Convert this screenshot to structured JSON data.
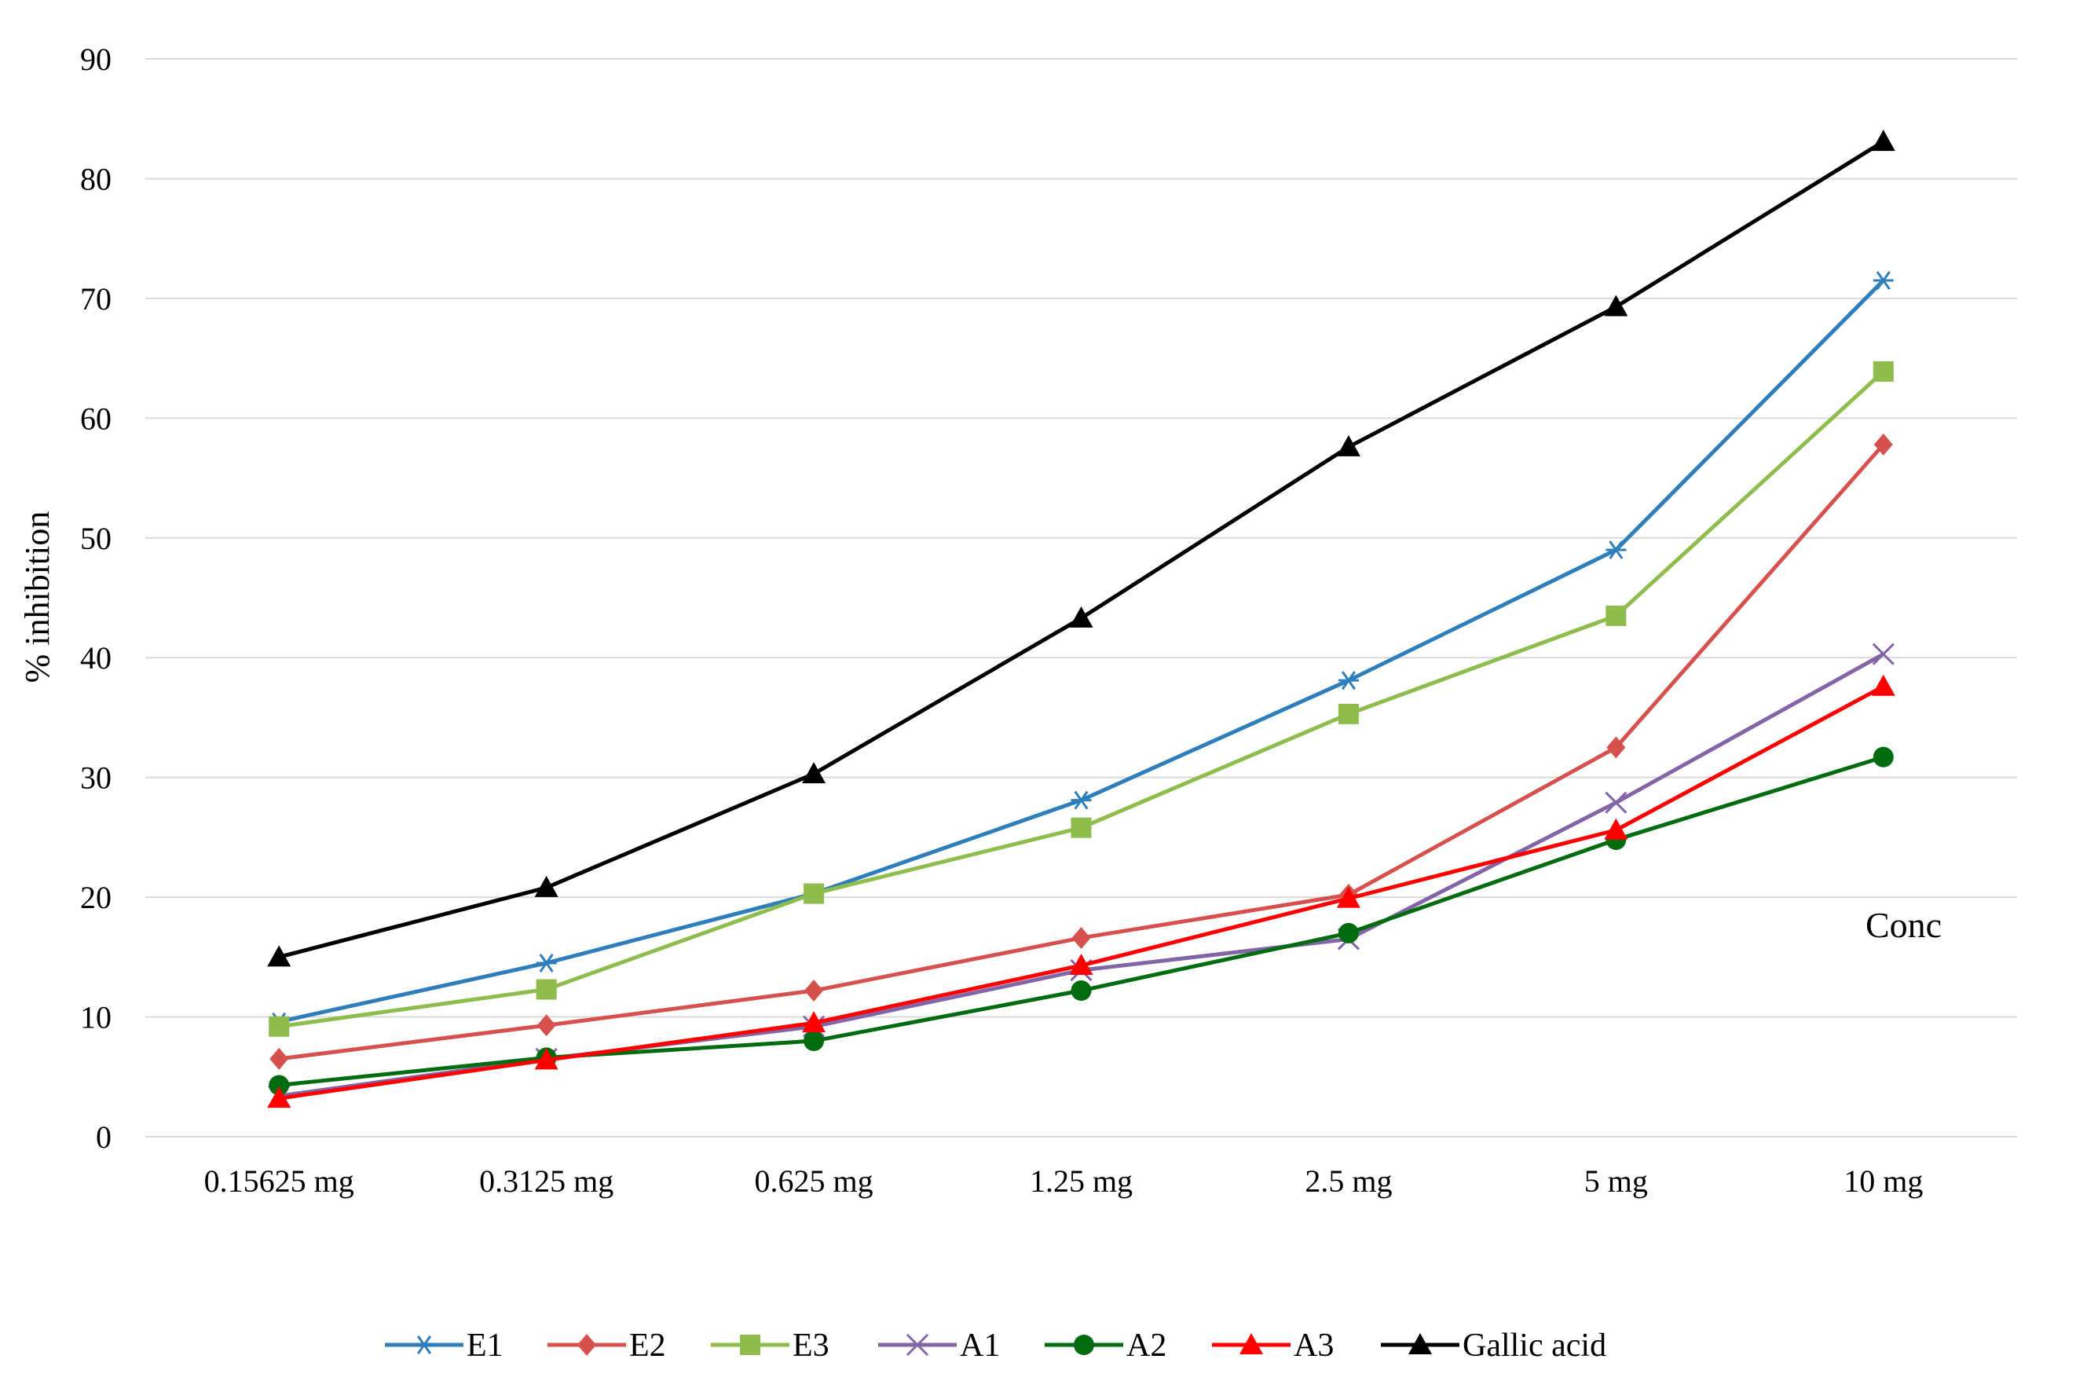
{
  "chart_data": {
    "type": "line",
    "title": "",
    "xlabel": "",
    "ylabel": "% inhibition",
    "ylim": [
      0,
      90
    ],
    "yticks": [
      0,
      10,
      20,
      30,
      40,
      50,
      60,
      70,
      80,
      90
    ],
    "grid": "horizontal",
    "legend_position": "bottom",
    "annotation": "Conc",
    "categories": [
      "0.15625 mg",
      "0.3125 mg",
      "0.625 mg",
      "1.25 mg",
      "2.5 mg",
      "5 mg",
      "10 mg"
    ],
    "series": [
      {
        "name": "E1",
        "color": "#2E7EBC",
        "marker": "asterisk",
        "values": [
          9.6,
          14.5,
          20.3,
          28.1,
          38.1,
          49.0,
          71.5
        ]
      },
      {
        "name": "E2",
        "color": "#D6514E",
        "marker": "diamond",
        "values": [
          6.5,
          9.3,
          12.2,
          16.6,
          20.2,
          32.5,
          57.8
        ]
      },
      {
        "name": "E3",
        "color": "#8EBD4E",
        "marker": "square",
        "values": [
          9.2,
          12.3,
          20.3,
          25.8,
          35.3,
          43.5,
          63.9
        ]
      },
      {
        "name": "A1",
        "color": "#8364A6",
        "marker": "x",
        "values": [
          3.4,
          6.5,
          9.2,
          13.9,
          16.5,
          27.9,
          40.3
        ]
      },
      {
        "name": "A2",
        "color": "#006B0F",
        "marker": "circle",
        "values": [
          4.3,
          6.6,
          8.0,
          12.2,
          17.0,
          24.8,
          31.7
        ]
      },
      {
        "name": "A3",
        "color": "#FF0000",
        "marker": "triangle",
        "values": [
          3.2,
          6.4,
          9.5,
          14.3,
          19.9,
          25.6,
          37.6
        ]
      },
      {
        "name": "Gallic acid",
        "color": "#000000",
        "marker": "triangle",
        "values": [
          15.0,
          20.8,
          30.3,
          43.3,
          57.6,
          69.3,
          83.1
        ]
      }
    ]
  }
}
